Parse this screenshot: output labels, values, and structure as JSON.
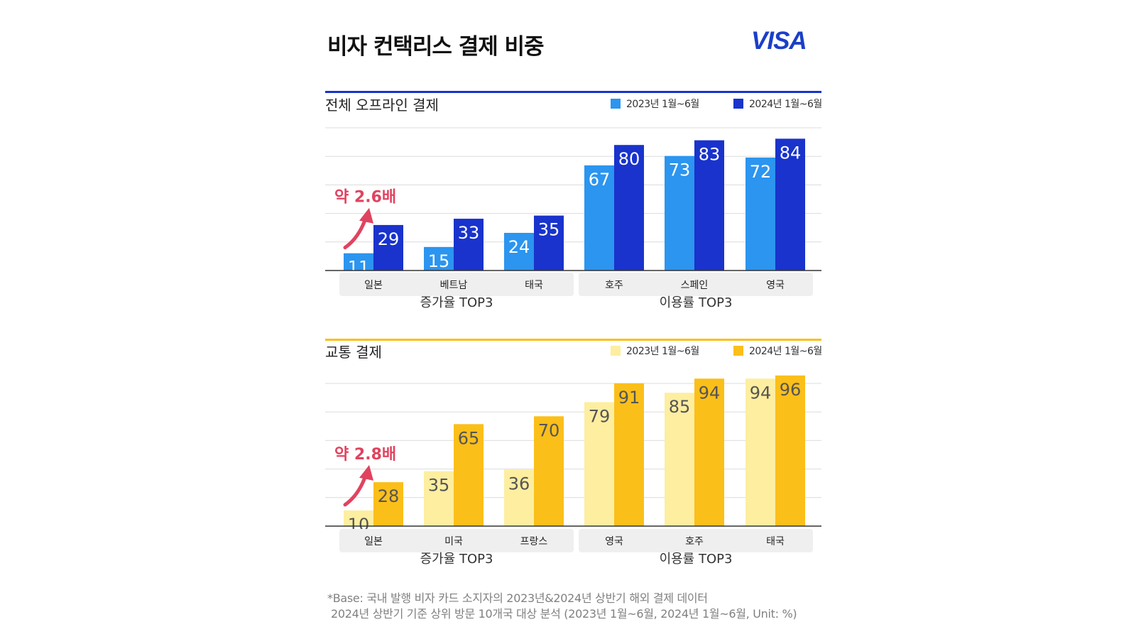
{
  "title": "비자 컨택리스 결제 비중",
  "brand": "VISA",
  "footnote": {
    "line1": "*Base: 국내 발행 비자 카드 소지자의 2023년&2024년 상반기 해외 결제 데이터",
    "line2": "2024년 상반기 기준 상위 방문 10개국 대상 분석 (2023년 1월~6월, 2024년 1월~6월, Unit: %)"
  },
  "chart_data": [
    {
      "type": "bar",
      "title": "전체 오프라인 결제",
      "categories": [
        "일본",
        "베트남",
        "태국",
        "호주",
        "스페인",
        "영국"
      ],
      "groups": [
        {
          "label": "증가율 TOP3",
          "categories": [
            "일본",
            "베트남",
            "태국"
          ]
        },
        {
          "label": "이용률 TOP3",
          "categories": [
            "호주",
            "스페인",
            "영국"
          ]
        }
      ],
      "series": [
        {
          "name": "2023년 1월~6월",
          "values": [
            11,
            15,
            24,
            67,
            73,
            72
          ],
          "color": "#2b95f0",
          "label_color": "#ffffff"
        },
        {
          "name": "2024년 1월~6월",
          "values": [
            29,
            33,
            35,
            80,
            83,
            84
          ],
          "color": "#1933cc",
          "label_color": "#ffffff"
        }
      ],
      "annotation": {
        "text": "약 2.6배",
        "category": "일본",
        "color": "#e0435f"
      },
      "accent": "#1933cc",
      "ylim": [
        0,
        100
      ],
      "legend": "top-right",
      "grid": true
    },
    {
      "type": "bar",
      "title": "교통 결제",
      "categories": [
        "일본",
        "미국",
        "프랑스",
        "영국",
        "호주",
        "태국"
      ],
      "groups": [
        {
          "label": "증가율 TOP3",
          "categories": [
            "일본",
            "미국",
            "프랑스"
          ]
        },
        {
          "label": "이용률 TOP3",
          "categories": [
            "영국",
            "호주",
            "태국"
          ]
        }
      ],
      "series": [
        {
          "name": "2023년 1월~6월",
          "values": [
            10,
            35,
            36,
            79,
            85,
            94
          ],
          "color": "#fdeea0",
          "label_color": "#555555"
        },
        {
          "name": "2024년 1월~6월",
          "values": [
            28,
            65,
            70,
            91,
            94,
            96
          ],
          "color": "#fbbf1a",
          "label_color": "#555555"
        }
      ],
      "annotation": {
        "text": "약 2.8배",
        "category": "일본",
        "color": "#e0435f"
      },
      "accent": "#fbbf1a",
      "ylim": [
        0,
        100
      ],
      "legend": "top-right",
      "grid": true
    }
  ]
}
